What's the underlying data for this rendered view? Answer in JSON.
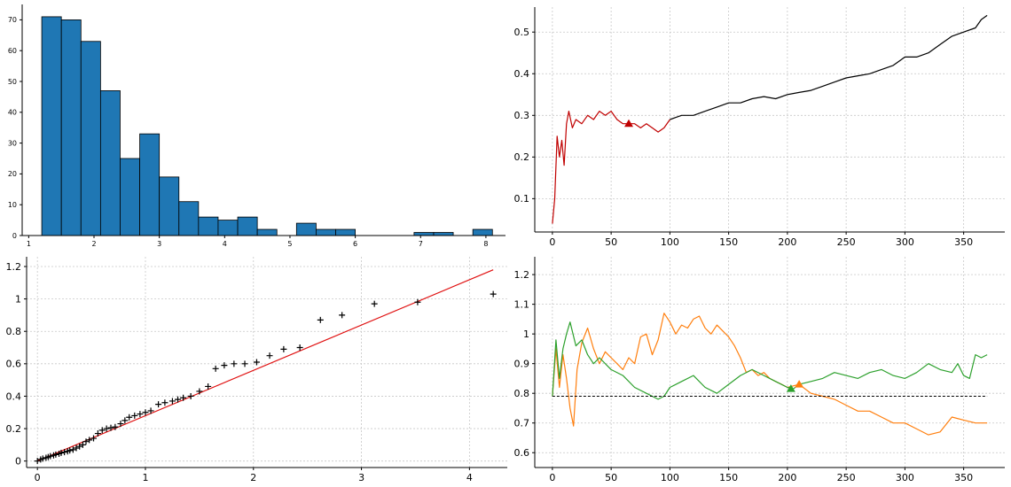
{
  "chart_data": [
    {
      "type": "bar",
      "panel": "top-left",
      "bin_edges": [
        1.2,
        1.5,
        1.8,
        2.1,
        2.4,
        2.7,
        3.0,
        3.3,
        3.6,
        3.9,
        4.2,
        4.5,
        4.8,
        5.1,
        5.4,
        5.7,
        6.0,
        6.3,
        6.6,
        6.9,
        7.2,
        7.5,
        7.8,
        8.1
      ],
      "counts": [
        71,
        70,
        63,
        47,
        25,
        33,
        19,
        11,
        6,
        5,
        6,
        2,
        0,
        4,
        2,
        2,
        0,
        0,
        0,
        1,
        1,
        0,
        2,
        1
      ],
      "xlim": [
        0.9,
        8.3
      ],
      "ylim": [
        0,
        75
      ],
      "xticks": [
        1,
        2,
        3,
        4,
        5,
        6,
        7,
        8
      ],
      "yticks": [
        0,
        10,
        20,
        30,
        40,
        50,
        60,
        70
      ],
      "grid": false,
      "colors": {
        "bar": "#1f77b4",
        "edge": "#000000"
      }
    },
    {
      "type": "line",
      "panel": "top-right",
      "xlim": [
        -15,
        385
      ],
      "ylim": [
        0.02,
        0.56
      ],
      "xticks": [
        0,
        50,
        100,
        150,
        200,
        250,
        300,
        350
      ],
      "yticks": [
        0.1,
        0.2,
        0.3,
        0.4,
        0.5
      ],
      "grid": true,
      "series": [
        {
          "color": "#c00000",
          "points": [
            [
              0,
              0.04
            ],
            [
              2,
              0.1
            ],
            [
              4,
              0.25
            ],
            [
              6,
              0.2
            ],
            [
              8,
              0.24
            ],
            [
              10,
              0.18
            ],
            [
              12,
              0.28
            ],
            [
              14,
              0.31
            ],
            [
              17,
              0.27
            ],
            [
              20,
              0.29
            ],
            [
              25,
              0.28
            ],
            [
              30,
              0.3
            ],
            [
              35,
              0.29
            ],
            [
              40,
              0.31
            ],
            [
              45,
              0.3
            ],
            [
              50,
              0.31
            ],
            [
              55,
              0.29
            ],
            [
              60,
              0.28
            ],
            [
              65,
              0.28
            ],
            [
              70,
              0.28
            ],
            [
              75,
              0.27
            ],
            [
              80,
              0.28
            ],
            [
              85,
              0.27
            ],
            [
              90,
              0.26
            ],
            [
              95,
              0.27
            ],
            [
              100,
              0.29
            ]
          ]
        },
        {
          "color": "#000000",
          "points": [
            [
              100,
              0.29
            ],
            [
              110,
              0.3
            ],
            [
              120,
              0.3
            ],
            [
              130,
              0.31
            ],
            [
              140,
              0.32
            ],
            [
              150,
              0.33
            ],
            [
              160,
              0.33
            ],
            [
              170,
              0.34
            ],
            [
              180,
              0.345
            ],
            [
              190,
              0.34
            ],
            [
              200,
              0.35
            ],
            [
              210,
              0.355
            ],
            [
              220,
              0.36
            ],
            [
              230,
              0.37
            ],
            [
              240,
              0.38
            ],
            [
              250,
              0.39
            ],
            [
              260,
              0.395
            ],
            [
              270,
              0.4
            ],
            [
              280,
              0.41
            ],
            [
              290,
              0.42
            ],
            [
              300,
              0.44
            ],
            [
              310,
              0.44
            ],
            [
              320,
              0.45
            ],
            [
              330,
              0.47
            ],
            [
              340,
              0.49
            ],
            [
              350,
              0.5
            ],
            [
              360,
              0.51
            ],
            [
              365,
              0.53
            ],
            [
              370,
              0.54
            ]
          ]
        }
      ],
      "markers": [
        {
          "x": 65,
          "y": 0.28,
          "color": "#c00000",
          "shape": "triangle"
        }
      ]
    },
    {
      "type": "scatter",
      "panel": "bottom-left",
      "xlim": [
        -0.1,
        4.35
      ],
      "ylim": [
        -0.04,
        1.26
      ],
      "xticks": [
        0,
        1,
        2,
        3,
        4
      ],
      "yticks": [
        0.0,
        0.2,
        0.4,
        0.6,
        0.8,
        1.0,
        1.2
      ],
      "grid": true,
      "marker": "+",
      "points": [
        [
          0.0,
          0.0
        ],
        [
          0.03,
          0.01
        ],
        [
          0.05,
          0.015
        ],
        [
          0.08,
          0.02
        ],
        [
          0.1,
          0.025
        ],
        [
          0.12,
          0.03
        ],
        [
          0.15,
          0.035
        ],
        [
          0.17,
          0.04
        ],
        [
          0.2,
          0.045
        ],
        [
          0.22,
          0.05
        ],
        [
          0.25,
          0.055
        ],
        [
          0.28,
          0.06
        ],
        [
          0.3,
          0.065
        ],
        [
          0.33,
          0.07
        ],
        [
          0.36,
          0.08
        ],
        [
          0.39,
          0.09
        ],
        [
          0.42,
          0.1
        ],
        [
          0.45,
          0.12
        ],
        [
          0.48,
          0.13
        ],
        [
          0.52,
          0.14
        ],
        [
          0.56,
          0.17
        ],
        [
          0.6,
          0.19
        ],
        [
          0.64,
          0.2
        ],
        [
          0.68,
          0.205
        ],
        [
          0.72,
          0.21
        ],
        [
          0.77,
          0.23
        ],
        [
          0.81,
          0.25
        ],
        [
          0.85,
          0.27
        ],
        [
          0.9,
          0.28
        ],
        [
          0.95,
          0.29
        ],
        [
          1.0,
          0.3
        ],
        [
          1.05,
          0.31
        ],
        [
          1.12,
          0.35
        ],
        [
          1.18,
          0.36
        ],
        [
          1.25,
          0.37
        ],
        [
          1.3,
          0.38
        ],
        [
          1.35,
          0.39
        ],
        [
          1.42,
          0.4
        ],
        [
          1.5,
          0.43
        ],
        [
          1.58,
          0.46
        ],
        [
          1.65,
          0.57
        ],
        [
          1.73,
          0.59
        ],
        [
          1.82,
          0.6
        ],
        [
          1.92,
          0.6
        ],
        [
          2.03,
          0.61
        ],
        [
          2.15,
          0.65
        ],
        [
          2.28,
          0.69
        ],
        [
          2.43,
          0.7
        ],
        [
          2.62,
          0.87
        ],
        [
          2.82,
          0.9
        ],
        [
          3.12,
          0.97
        ],
        [
          3.52,
          0.98
        ],
        [
          4.22,
          1.03
        ]
      ],
      "fit_line": {
        "x": [
          0,
          4.22
        ],
        "y": [
          0,
          1.18
        ],
        "color": "#e01010"
      }
    },
    {
      "type": "line",
      "panel": "bottom-right",
      "xlim": [
        -15,
        385
      ],
      "ylim": [
        0.55,
        1.26
      ],
      "xticks": [
        0,
        50,
        100,
        150,
        200,
        250,
        300,
        350
      ],
      "yticks": [
        0.6,
        0.7,
        0.8,
        0.9,
        1.0,
        1.1,
        1.2
      ],
      "grid": true,
      "series": [
        {
          "color": "#ff7f0e",
          "points": [
            [
              0,
              0.79
            ],
            [
              3,
              0.95
            ],
            [
              6,
              0.82
            ],
            [
              9,
              0.93
            ],
            [
              12,
              0.85
            ],
            [
              15,
              0.75
            ],
            [
              18,
              0.69
            ],
            [
              21,
              0.88
            ],
            [
              25,
              0.97
            ],
            [
              30,
              1.02
            ],
            [
              35,
              0.95
            ],
            [
              40,
              0.9
            ],
            [
              45,
              0.94
            ],
            [
              50,
              0.92
            ],
            [
              55,
              0.9
            ],
            [
              60,
              0.88
            ],
            [
              65,
              0.92
            ],
            [
              70,
              0.9
            ],
            [
              75,
              0.99
            ],
            [
              80,
              1.0
            ],
            [
              85,
              0.93
            ],
            [
              90,
              0.98
            ],
            [
              95,
              1.07
            ],
            [
              100,
              1.04
            ],
            [
              105,
              1.0
            ],
            [
              110,
              1.03
            ],
            [
              115,
              1.02
            ],
            [
              120,
              1.05
            ],
            [
              125,
              1.06
            ],
            [
              130,
              1.02
            ],
            [
              135,
              1.0
            ],
            [
              140,
              1.03
            ],
            [
              145,
              1.01
            ],
            [
              150,
              0.99
            ],
            [
              155,
              0.96
            ],
            [
              160,
              0.92
            ],
            [
              165,
              0.87
            ],
            [
              170,
              0.88
            ],
            [
              175,
              0.86
            ],
            [
              180,
              0.87
            ],
            [
              185,
              0.85
            ],
            [
              190,
              0.84
            ],
            [
              195,
              0.83
            ],
            [
              200,
              0.82
            ],
            [
              205,
              0.825
            ],
            [
              210,
              0.83
            ],
            [
              220,
              0.8
            ],
            [
              230,
              0.79
            ],
            [
              240,
              0.78
            ],
            [
              250,
              0.76
            ],
            [
              260,
              0.74
            ],
            [
              270,
              0.74
            ],
            [
              280,
              0.72
            ],
            [
              290,
              0.7
            ],
            [
              300,
              0.7
            ],
            [
              310,
              0.68
            ],
            [
              320,
              0.66
            ],
            [
              330,
              0.67
            ],
            [
              340,
              0.72
            ],
            [
              350,
              0.71
            ],
            [
              360,
              0.7
            ],
            [
              370,
              0.7
            ]
          ]
        },
        {
          "color": "#2ca02c",
          "points": [
            [
              0,
              0.79
            ],
            [
              3,
              0.98
            ],
            [
              6,
              0.85
            ],
            [
              9,
              0.95
            ],
            [
              12,
              1.0
            ],
            [
              15,
              1.04
            ],
            [
              20,
              0.96
            ],
            [
              25,
              0.98
            ],
            [
              30,
              0.93
            ],
            [
              35,
              0.9
            ],
            [
              40,
              0.92
            ],
            [
              50,
              0.88
            ],
            [
              60,
              0.86
            ],
            [
              70,
              0.82
            ],
            [
              80,
              0.8
            ],
            [
              90,
              0.78
            ],
            [
              95,
              0.79
            ],
            [
              100,
              0.82
            ],
            [
              110,
              0.84
            ],
            [
              120,
              0.86
            ],
            [
              130,
              0.82
            ],
            [
              140,
              0.8
            ],
            [
              150,
              0.83
            ],
            [
              160,
              0.86
            ],
            [
              170,
              0.88
            ],
            [
              180,
              0.86
            ],
            [
              190,
              0.84
            ],
            [
              200,
              0.82
            ],
            [
              205,
              0.815
            ],
            [
              210,
              0.83
            ],
            [
              220,
              0.84
            ],
            [
              230,
              0.85
            ],
            [
              240,
              0.87
            ],
            [
              250,
              0.86
            ],
            [
              260,
              0.85
            ],
            [
              270,
              0.87
            ],
            [
              280,
              0.88
            ],
            [
              290,
              0.86
            ],
            [
              300,
              0.85
            ],
            [
              310,
              0.87
            ],
            [
              320,
              0.9
            ],
            [
              330,
              0.88
            ],
            [
              340,
              0.87
            ],
            [
              345,
              0.9
            ],
            [
              350,
              0.86
            ],
            [
              355,
              0.85
            ],
            [
              360,
              0.93
            ],
            [
              365,
              0.92
            ],
            [
              370,
              0.93
            ]
          ]
        }
      ],
      "hline": {
        "y": 0.79,
        "x": [
          0,
          370
        ],
        "color": "#000000",
        "style": "dashed"
      },
      "markers": [
        {
          "x": 203,
          "y": 0.815,
          "color": "#2ca02c",
          "shape": "triangle"
        },
        {
          "x": 210,
          "y": 0.83,
          "color": "#ff7f0e",
          "shape": "triangle"
        }
      ]
    }
  ]
}
